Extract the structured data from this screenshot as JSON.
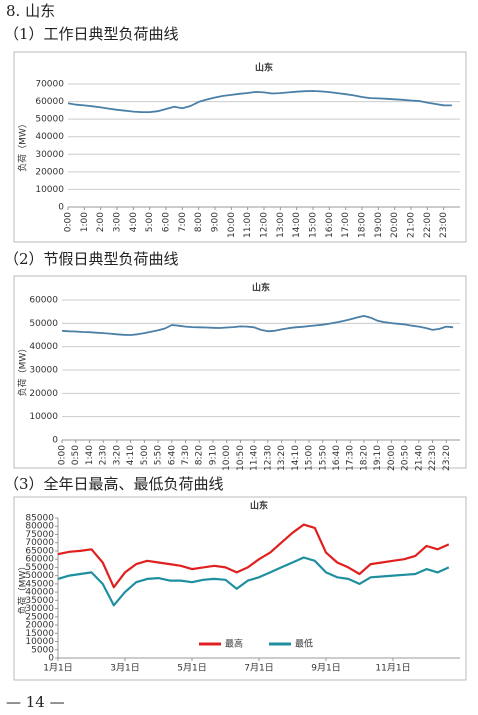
{
  "heading": "8. 山东",
  "subheadings": [
    "（1）工作日典型负荷曲线",
    "（2）节假日典型负荷曲线",
    "（3）全年日最高、最低负荷曲线"
  ],
  "footer": "— 14 —",
  "chart_data": [
    {
      "type": "line",
      "title": "山东",
      "y_label": "负荷（MW）",
      "color": "#4a7fa8",
      "grid": true,
      "ylim": [
        0,
        70000
      ],
      "yticks": [
        0,
        10000,
        20000,
        30000,
        40000,
        50000,
        60000,
        70000
      ],
      "categories": [
        "0:00",
        null,
        "1:00",
        null,
        "2:00",
        null,
        "3:00",
        null,
        "4:00",
        null,
        "5:00",
        null,
        "6:00",
        null,
        "7:00",
        null,
        "8:00",
        null,
        "9:00",
        null,
        "10:00",
        null,
        "11:00",
        null,
        "12:00",
        null,
        "13:00",
        null,
        "14:00",
        null,
        "15:00",
        null,
        "16:00",
        null,
        "17:00",
        null,
        "18:00",
        null,
        "19:00",
        null,
        "20:00",
        null,
        "21:00",
        null,
        "22:00",
        null,
        "23:00",
        null
      ],
      "values": [
        59000,
        58200,
        57800,
        57300,
        56700,
        56000,
        55300,
        54800,
        54300,
        54000,
        54000,
        54500,
        55800,
        57000,
        56200,
        57500,
        59800,
        61200,
        62300,
        63200,
        63800,
        64400,
        64900,
        65500,
        65200,
        64600,
        64800,
        65200,
        65600,
        65900,
        66000,
        65800,
        65400,
        64800,
        64200,
        63500,
        62600,
        62000,
        61800,
        61600,
        61300,
        61000,
        60600,
        60300,
        59400,
        58600,
        57900,
        57800
      ]
    },
    {
      "type": "line",
      "title": "山东",
      "y_label": "负荷（MW）",
      "color": "#4a7fa8",
      "grid": true,
      "ylim": [
        0,
        60000
      ],
      "yticks": [
        0,
        10000,
        20000,
        30000,
        40000,
        50000,
        60000
      ],
      "categories": [
        "0:00",
        null,
        "0:50",
        null,
        "1:40",
        null,
        "2:30",
        null,
        "3:20",
        null,
        "4:10",
        null,
        "5:00",
        null,
        "5:50",
        null,
        "6:40",
        null,
        "7:30",
        null,
        "8:20",
        null,
        "9:10",
        null,
        "10:00",
        null,
        "10:50",
        null,
        "11:40",
        null,
        "12:30",
        null,
        "13:20",
        null,
        "14:10",
        null,
        "15:00",
        null,
        "15:50",
        null,
        "16:40",
        null,
        "17:30",
        null,
        "18:20",
        null,
        "19:10",
        null,
        "20:00",
        null,
        "20:50",
        null,
        "21:40",
        null,
        "22:30",
        null,
        "23:20",
        null
      ],
      "values": [
        46800,
        46600,
        46500,
        46300,
        46200,
        46000,
        45800,
        45600,
        45300,
        45100,
        45000,
        45300,
        45800,
        46400,
        47000,
        47800,
        49300,
        49000,
        48600,
        48400,
        48300,
        48200,
        48100,
        48000,
        48200,
        48400,
        48700,
        48600,
        48300,
        47200,
        46600,
        46800,
        47400,
        47900,
        48300,
        48500,
        48800,
        49100,
        49400,
        49900,
        50400,
        51000,
        51700,
        52500,
        53200,
        52400,
        51100,
        50500,
        50100,
        49800,
        49500,
        49000,
        48600,
        48000,
        47200,
        47600,
        48600,
        48300
      ]
    },
    {
      "type": "line",
      "title": "山东",
      "y_label": "负荷（MW）",
      "grid": false,
      "legend": "bottom",
      "ylim": [
        0,
        85000
      ],
      "yticks": [
        0,
        5000,
        10000,
        15000,
        20000,
        25000,
        30000,
        35000,
        40000,
        45000,
        50000,
        55000,
        60000,
        65000,
        70000,
        75000,
        80000,
        85000
      ],
      "categories": [
        "1月1日",
        null,
        null,
        null,
        null,
        null,
        "3月1日",
        null,
        null,
        null,
        null,
        null,
        "5月1日",
        null,
        null,
        null,
        null,
        null,
        "7月1日",
        null,
        null,
        null,
        null,
        null,
        "9月1日",
        null,
        null,
        null,
        null,
        null,
        "11月1日",
        null,
        null,
        null,
        null,
        null
      ],
      "series": [
        {
          "name": "最高",
          "color": "#e02020",
          "values": [
            63000,
            64500,
            65000,
            66000,
            58000,
            43000,
            52000,
            57000,
            59000,
            58000,
            57000,
            56000,
            54000,
            55000,
            56000,
            55000,
            52000,
            55000,
            60000,
            64000,
            70000,
            76000,
            81000,
            79000,
            64000,
            58000,
            55000,
            51000,
            57000,
            58000,
            59000,
            60000,
            62000,
            68000,
            66000,
            69000
          ]
        },
        {
          "name": "最低",
          "color": "#1f8fa0",
          "values": [
            48000,
            50000,
            51000,
            52000,
            45000,
            32000,
            40000,
            46000,
            48000,
            48500,
            47000,
            47000,
            46000,
            47500,
            48000,
            47500,
            42000,
            47000,
            49000,
            52000,
            55000,
            58000,
            61000,
            59000,
            52000,
            49000,
            48000,
            45000,
            49000,
            49500,
            50000,
            50500,
            51000,
            54000,
            52000,
            55000
          ]
        }
      ]
    }
  ]
}
